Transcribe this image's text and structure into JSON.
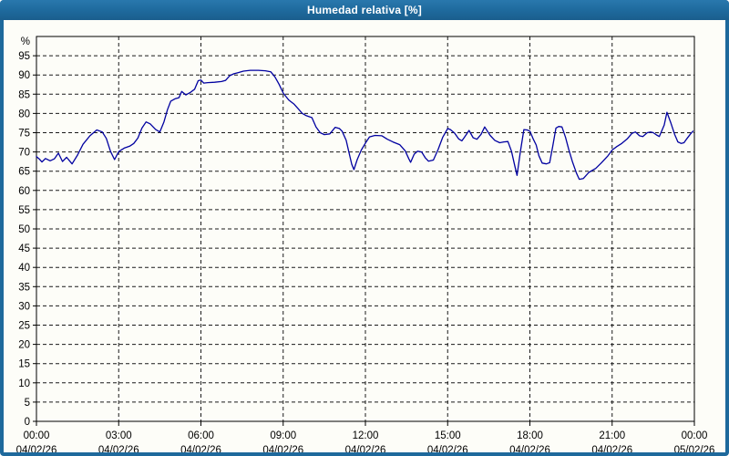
{
  "window": {
    "title": "Humedad relativa [%]",
    "title_bar_color": "#1E699C",
    "border_color": "#1E699C",
    "background_color": "#FDFDF8"
  },
  "chart_data": {
    "type": "line",
    "title": "Humedad relativa [%]",
    "ylabel": "%",
    "ylim": [
      0,
      100
    ],
    "yticks": [
      0,
      5,
      10,
      15,
      20,
      25,
      30,
      35,
      40,
      45,
      50,
      55,
      60,
      65,
      70,
      75,
      80,
      85,
      90,
      95
    ],
    "grid": "dashed",
    "grid_color": "#1a1a1a",
    "axis_color": "#000000",
    "line_color": "#0000A0",
    "x_hours_range": [
      0,
      24
    ],
    "xticks": [
      {
        "hour": 0,
        "time": "00:00",
        "date": "04/02/26"
      },
      {
        "hour": 3,
        "time": "03:00",
        "date": "04/02/26"
      },
      {
        "hour": 6,
        "time": "06:00",
        "date": "04/02/26"
      },
      {
        "hour": 9,
        "time": "09:00",
        "date": "04/02/26"
      },
      {
        "hour": 12,
        "time": "12:00",
        "date": "04/02/26"
      },
      {
        "hour": 15,
        "time": "15:00",
        "date": "04/02/26"
      },
      {
        "hour": 18,
        "time": "18:00",
        "date": "04/02/26"
      },
      {
        "hour": 21,
        "time": "21:00",
        "date": "04/02/26"
      },
      {
        "hour": 24,
        "time": "00:00",
        "date": "05/02/26"
      }
    ],
    "series": [
      {
        "name": "Humedad relativa",
        "unit": "%",
        "points": [
          [
            0,
            68.8
          ],
          [
            0.1,
            68.2
          ],
          [
            0.2,
            67.4
          ],
          [
            0.33,
            68.3
          ],
          [
            0.5,
            67.7
          ],
          [
            0.65,
            68.2
          ],
          [
            0.8,
            69.7
          ],
          [
            0.95,
            67.5
          ],
          [
            1.1,
            68.6
          ],
          [
            1.3,
            66.9
          ],
          [
            1.5,
            69.2
          ],
          [
            1.7,
            72
          ],
          [
            1.95,
            74.2
          ],
          [
            2.2,
            75.7
          ],
          [
            2.4,
            75.2
          ],
          [
            2.55,
            73.5
          ],
          [
            2.7,
            70.2
          ],
          [
            2.85,
            68
          ],
          [
            3,
            70.1
          ],
          [
            3.2,
            71
          ],
          [
            3.4,
            71.5
          ],
          [
            3.55,
            72.2
          ],
          [
            3.7,
            73.6
          ],
          [
            3.85,
            76.2
          ],
          [
            4,
            77.8
          ],
          [
            4.15,
            77.3
          ],
          [
            4.35,
            75.8
          ],
          [
            4.5,
            75.2
          ],
          [
            4.65,
            77.8
          ],
          [
            4.78,
            81
          ],
          [
            4.9,
            83.2
          ],
          [
            5.05,
            83.8
          ],
          [
            5.2,
            84.1
          ],
          [
            5.3,
            85.7
          ],
          [
            5.45,
            84.8
          ],
          [
            5.6,
            85.4
          ],
          [
            5.77,
            86.3
          ],
          [
            5.9,
            88.5
          ],
          [
            6,
            88.7
          ],
          [
            6.1,
            87.9
          ],
          [
            6.25,
            88
          ],
          [
            6.5,
            88.1
          ],
          [
            6.75,
            88.3
          ],
          [
            6.9,
            88.6
          ],
          [
            7.05,
            89.8
          ],
          [
            7.2,
            90.3
          ],
          [
            7.35,
            90.6
          ],
          [
            7.55,
            91
          ],
          [
            7.8,
            91.2
          ],
          [
            8.1,
            91.2
          ],
          [
            8.35,
            91.1
          ],
          [
            8.55,
            90.8
          ],
          [
            8.7,
            89.5
          ],
          [
            8.85,
            87.6
          ],
          [
            9,
            85.3
          ],
          [
            9.2,
            83.5
          ],
          [
            9.4,
            82.4
          ],
          [
            9.55,
            81.2
          ],
          [
            9.7,
            80
          ],
          [
            9.85,
            79.4
          ],
          [
            10.05,
            78.9
          ],
          [
            10.2,
            76.5
          ],
          [
            10.35,
            75
          ],
          [
            10.5,
            74.5
          ],
          [
            10.7,
            74.7
          ],
          [
            10.9,
            76.4
          ],
          [
            11.05,
            76.1
          ],
          [
            11.15,
            75.4
          ],
          [
            11.3,
            73
          ],
          [
            11.4,
            69.8
          ],
          [
            11.5,
            66.8
          ],
          [
            11.58,
            65.4
          ],
          [
            11.7,
            68
          ],
          [
            11.85,
            70.5
          ],
          [
            12,
            72.3
          ],
          [
            12.15,
            73.9
          ],
          [
            12.35,
            74.3
          ],
          [
            12.6,
            74.2
          ],
          [
            12.8,
            73.3
          ],
          [
            13,
            72.6
          ],
          [
            13.25,
            71.9
          ],
          [
            13.45,
            70.3
          ],
          [
            13.58,
            68.3
          ],
          [
            13.65,
            67.3
          ],
          [
            13.78,
            69.4
          ],
          [
            13.9,
            70.2
          ],
          [
            14.05,
            70
          ],
          [
            14.18,
            68.5
          ],
          [
            14.3,
            67.6
          ],
          [
            14.48,
            67.9
          ],
          [
            14.65,
            70.6
          ],
          [
            14.82,
            73.8
          ],
          [
            15,
            76.1
          ],
          [
            15.1,
            75.8
          ],
          [
            15.25,
            74.9
          ],
          [
            15.4,
            73.4
          ],
          [
            15.52,
            72.9
          ],
          [
            15.65,
            74.2
          ],
          [
            15.78,
            75.6
          ],
          [
            15.93,
            73.7
          ],
          [
            16.07,
            73.3
          ],
          [
            16.22,
            74.6
          ],
          [
            16.35,
            76.5
          ],
          [
            16.55,
            74.3
          ],
          [
            16.72,
            73
          ],
          [
            16.9,
            72.4
          ],
          [
            17.05,
            72.6
          ],
          [
            17.2,
            72.7
          ],
          [
            17.33,
            70.2
          ],
          [
            17.45,
            66.3
          ],
          [
            17.53,
            63.9
          ],
          [
            17.65,
            70
          ],
          [
            17.78,
            75.8
          ],
          [
            17.9,
            75.7
          ],
          [
            18,
            75.4
          ],
          [
            18.12,
            73.4
          ],
          [
            18.23,
            71.8
          ],
          [
            18.33,
            69
          ],
          [
            18.45,
            67.1
          ],
          [
            18.6,
            66.9
          ],
          [
            18.72,
            67.2
          ],
          [
            18.83,
            71.4
          ],
          [
            18.95,
            76.2
          ],
          [
            19.05,
            76.6
          ],
          [
            19.17,
            76.5
          ],
          [
            19.3,
            73.8
          ],
          [
            19.42,
            70.6
          ],
          [
            19.55,
            67.5
          ],
          [
            19.7,
            64.5
          ],
          [
            19.8,
            62.9
          ],
          [
            19.95,
            63.1
          ],
          [
            20.15,
            64.7
          ],
          [
            20.4,
            65.7
          ],
          [
            20.6,
            67.1
          ],
          [
            20.85,
            69
          ],
          [
            21,
            70.5
          ],
          [
            21.17,
            71.4
          ],
          [
            21.35,
            72.2
          ],
          [
            21.55,
            73.4
          ],
          [
            21.72,
            74.8
          ],
          [
            21.85,
            75.2
          ],
          [
            22,
            74.2
          ],
          [
            22.12,
            74
          ],
          [
            22.28,
            75
          ],
          [
            22.4,
            75.2
          ],
          [
            22.5,
            75
          ],
          [
            22.62,
            74.4
          ],
          [
            22.72,
            74
          ],
          [
            22.9,
            77
          ],
          [
            23,
            80.3
          ],
          [
            23.15,
            77.4
          ],
          [
            23.28,
            74.6
          ],
          [
            23.4,
            72.6
          ],
          [
            23.52,
            72.2
          ],
          [
            23.62,
            72.4
          ],
          [
            23.72,
            73.4
          ],
          [
            23.85,
            74.6
          ],
          [
            23.95,
            75.4
          ]
        ]
      }
    ]
  }
}
